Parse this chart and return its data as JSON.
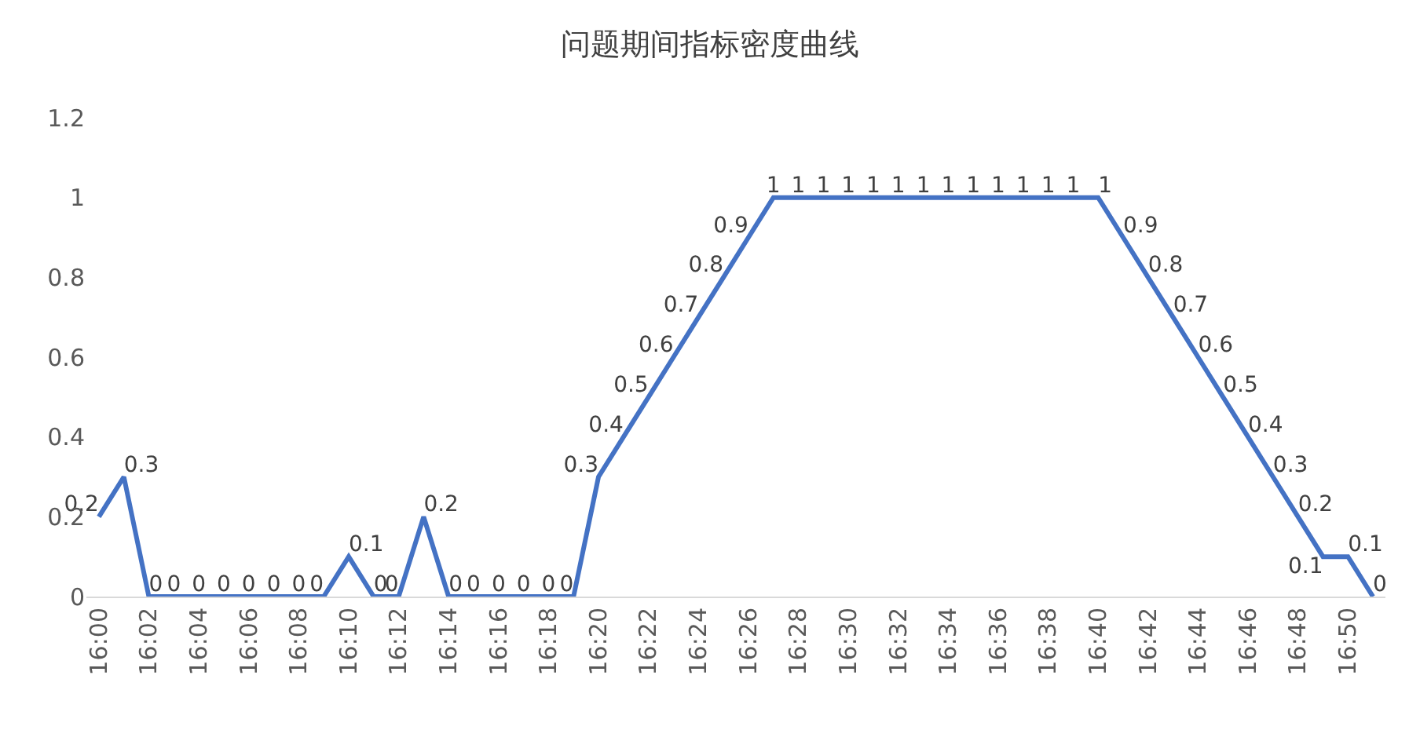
{
  "chart_data": {
    "type": "line",
    "title": "问题期间指标密度曲线",
    "categories": [
      "16:00",
      null,
      "16:02",
      null,
      "16:04",
      null,
      "16:06",
      null,
      "16:08",
      null,
      "16:10",
      null,
      "16:12",
      null,
      "16:14",
      null,
      "16:16",
      null,
      "16:18",
      null,
      "16:20",
      null,
      "16:22",
      null,
      "16:24",
      null,
      "16:26",
      null,
      "16:28",
      null,
      "16:30",
      null,
      "16:32",
      null,
      "16:34",
      null,
      "16:36",
      null,
      "16:38",
      null,
      "16:40",
      null,
      "16:42",
      null,
      "16:44",
      null,
      "16:46",
      null,
      "16:48",
      null,
      "16:50",
      null
    ],
    "series": [
      {
        "color": "#4472c4",
        "values": [
          0.2,
          0.3,
          0,
          0,
          0,
          0,
          0,
          0,
          0,
          0,
          0.1,
          0,
          0,
          0.2,
          0,
          0,
          0,
          0,
          0,
          0,
          0.3,
          0.4,
          0.5,
          0.6,
          0.7,
          0.8,
          0.9,
          1,
          1,
          1,
          1,
          1,
          1,
          1,
          1,
          1,
          1,
          1,
          1,
          1,
          1,
          0.9,
          0.8,
          0.7,
          0.6,
          0.5,
          0.4,
          0.3,
          0.2,
          0.1,
          0.1,
          0
        ]
      }
    ],
    "ylim": [
      0,
      1.2
    ],
    "yticks": [
      0,
      0.2,
      0.4,
      0.6,
      0.8,
      1,
      1.2
    ],
    "data_labels": true,
    "grid": false,
    "legend": false,
    "marker": "none",
    "line_style": "solid"
  }
}
